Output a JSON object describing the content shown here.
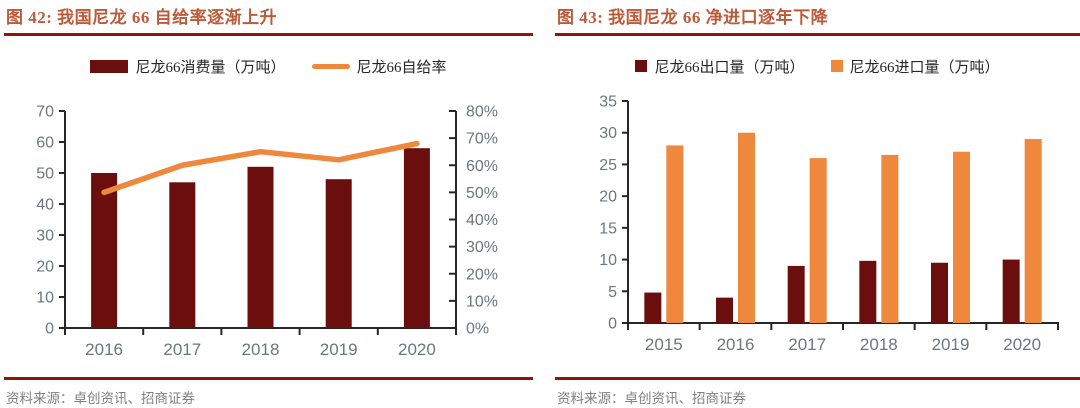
{
  "colors": {
    "maroon": "#6B0F0E",
    "orange": "#EF873C",
    "title_text": "#BC5B3B",
    "rule": "#8E1708",
    "axis_text": "#6E7580",
    "axis_line": "#262626",
    "source_text": "#7F7F7F"
  },
  "panels": {
    "fig42": {
      "title": "图 42:  我国尼龙 66 自给率逐渐上升",
      "legend": [
        {
          "label": "尼龙66消费量（万吨）",
          "swatch": "bar",
          "color": "maroon"
        },
        {
          "label": "尼龙66自给率",
          "swatch": "line",
          "color": "orange"
        }
      ],
      "source": "资料来源：卓创资讯、招商证券"
    },
    "fig43": {
      "title": "图 43:  我国尼龙 66 净进口逐年下降",
      "legend": [
        {
          "label": "尼龙66出口量（万吨）",
          "swatch": "square",
          "color": "maroon"
        },
        {
          "label": "尼龙66进口量（万吨）",
          "swatch": "square",
          "color": "orange"
        }
      ],
      "source": "资料来源：卓创资讯、招商证券"
    }
  },
  "chart_data": [
    {
      "id": "fig42",
      "type": "bar",
      "combo": "bar+line",
      "title": "我国尼龙 66 自给率逐渐上升",
      "categories": [
        "2016",
        "2017",
        "2018",
        "2019",
        "2020"
      ],
      "series": [
        {
          "name": "尼龙66消费量（万吨）",
          "kind": "bar",
          "axis": "left",
          "color": "maroon",
          "values": [
            50,
            47,
            52,
            48,
            58
          ]
        },
        {
          "name": "尼龙66自给率",
          "kind": "line",
          "axis": "right",
          "color": "orange",
          "values_percent": [
            50,
            60,
            65,
            62,
            68
          ]
        }
      ],
      "left_axis": {
        "min": 0,
        "max": 70,
        "step": 10
      },
      "right_axis": {
        "min": 0,
        "max": 80,
        "step": 10,
        "format": "percent"
      },
      "legend_position": "top",
      "grid": false
    },
    {
      "id": "fig43",
      "type": "bar",
      "title": "我国尼龙 66 净进口逐年下降",
      "categories": [
        "2015",
        "2016",
        "2017",
        "2018",
        "2019",
        "2020"
      ],
      "series": [
        {
          "name": "尼龙66出口量（万吨）",
          "kind": "bar",
          "color": "maroon",
          "values": [
            4.8,
            4,
            9,
            9.8,
            9.5,
            10
          ]
        },
        {
          "name": "尼龙66进口量（万吨）",
          "kind": "bar",
          "color": "orange",
          "values": [
            28,
            30,
            26,
            26.5,
            27,
            29
          ]
        }
      ],
      "y_axis": {
        "min": 0,
        "max": 35,
        "step": 5
      },
      "legend_position": "top",
      "grid": false
    }
  ]
}
